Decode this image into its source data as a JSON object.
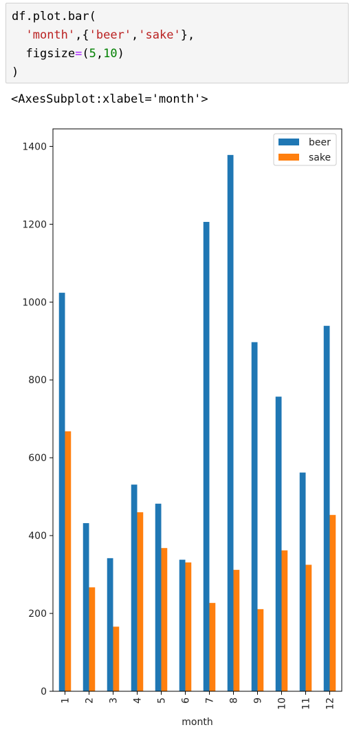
{
  "code_cell": {
    "line1": "df.plot.bar(",
    "line2_indent": "  ",
    "line2_str1": "'month'",
    "line2_mid": ",{",
    "line2_str2": "'beer'",
    "line2_comma": ",",
    "line2_str3": "'sake'",
    "line2_end": "},",
    "line3_indent": "  ",
    "line3_kw": "figsize",
    "line3_eq": "=",
    "line3_open": "(",
    "line3_num1": "5",
    "line3_comma": ",",
    "line3_num2": "10",
    "line3_close": ")",
    "line4": ")"
  },
  "output_repr": "<AxesSubplot:xlabel='month'>",
  "chart_data": {
    "type": "bar",
    "categories": [
      "1",
      "2",
      "3",
      "4",
      "5",
      "6",
      "7",
      "8",
      "9",
      "10",
      "11",
      "12"
    ],
    "series": [
      {
        "name": "beer",
        "color": "#1f77b4",
        "values": [
          1024,
          432,
          342,
          531,
          482,
          338,
          1206,
          1378,
          897,
          757,
          562,
          939
        ]
      },
      {
        "name": "sake",
        "color": "#ff7f0e",
        "values": [
          668,
          267,
          166,
          460,
          368,
          331,
          227,
          312,
          211,
          362,
          325,
          453
        ]
      }
    ],
    "xlabel": "month",
    "ylabel": "",
    "ylim": [
      0,
      1445
    ],
    "yticks": [
      0,
      200,
      400,
      600,
      800,
      1000,
      1200,
      1400
    ],
    "legend_position": "top-right",
    "grid": false
  }
}
